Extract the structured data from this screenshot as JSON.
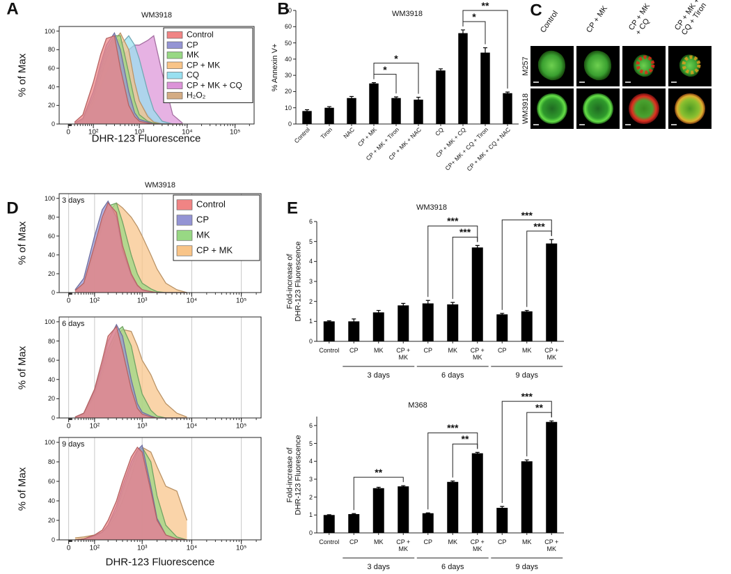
{
  "panel_labels": [
    "A",
    "B",
    "C",
    "D",
    "E"
  ],
  "panel_c": {
    "columns": [
      "Control",
      "CP + MK",
      "CP + MK\n+ CQ",
      "CP + MK +\nCQ + Tiron"
    ],
    "rows": [
      "M257",
      "WM3918"
    ]
  },
  "chart_data": [
    {
      "type": "area",
      "title": "WM3918",
      "xlabel": "DHR-123 Fluorescence",
      "ylabel": "% of Max",
      "xscale": "biexponential",
      "xlim": [
        -30,
        250000
      ],
      "xticks": [
        0,
        {
          "value": 100,
          "label": "10²"
        },
        {
          "value": 1000,
          "label": "10³"
        },
        {
          "value": 10000,
          "label": "10⁴"
        },
        {
          "value": 100000,
          "label": "10⁵"
        }
      ],
      "ylim": [
        0,
        105
      ],
      "yticks": [
        0,
        20,
        40,
        60,
        80,
        100
      ],
      "grid": false,
      "legend": "upper right",
      "x": [
        20,
        50,
        100,
        150,
        200,
        300,
        400,
        600,
        800,
        1000,
        1500,
        2000,
        3000,
        5000,
        8000
      ],
      "series": [
        {
          "name": "Control",
          "color": "#f08484",
          "values": [
            2,
            10,
            45,
            75,
            92,
            95,
            60,
            20,
            8,
            3,
            1,
            0,
            0,
            0,
            0
          ]
        },
        {
          "name": "CP",
          "color": "#9494d4",
          "values": [
            1,
            6,
            35,
            65,
            85,
            98,
            80,
            35,
            12,
            5,
            2,
            0,
            0,
            0,
            0
          ]
        },
        {
          "name": "MK",
          "color": "#98d884",
          "values": [
            1,
            5,
            30,
            60,
            80,
            95,
            95,
            55,
            25,
            10,
            3,
            1,
            0,
            0,
            0
          ]
        },
        {
          "name": "CP + MK",
          "color": "#f8c488",
          "values": [
            1,
            4,
            25,
            50,
            70,
            90,
            98,
            80,
            45,
            25,
            8,
            2,
            0,
            0,
            0
          ]
        },
        {
          "name": "CQ",
          "color": "#98e0f0",
          "values": [
            0,
            3,
            20,
            40,
            55,
            75,
            85,
            95,
            85,
            70,
            35,
            15,
            3,
            0,
            0
          ]
        },
        {
          "name": "CP + MK + CQ",
          "color": "#dc94d8",
          "values": [
            0,
            2,
            15,
            30,
            45,
            62,
            70,
            80,
            85,
            85,
            90,
            95,
            55,
            10,
            1
          ]
        },
        {
          "name": "H₂O₂",
          "color": "#d4ac84",
          "values": [
            1,
            5,
            30,
            55,
            75,
            92,
            90,
            65,
            40,
            25,
            10,
            3,
            1,
            0,
            0
          ]
        }
      ]
    },
    {
      "type": "bar",
      "title": "WM3918",
      "ylabel": "% Annexin V+",
      "xtick_rotation": -45,
      "color": "#000000",
      "categories": [
        "Control",
        "Tiron",
        "NAC",
        "CP + MK",
        "CP + MK + Tiron",
        "CP + MK + NAC",
        "CQ",
        "CP + MK + CQ",
        "CP+ MK + CQ + Tiron",
        "CP + MK + CQ + NAC"
      ],
      "values": [
        8,
        10,
        16,
        25,
        16,
        15,
        33,
        56,
        44,
        19
      ],
      "errors": [
        0.8,
        0.7,
        1,
        0.5,
        0.7,
        1.5,
        1,
        2,
        3,
        0.7
      ],
      "ylim": [
        0,
        70
      ],
      "yticks": [
        0,
        10,
        20,
        30,
        40,
        50,
        60,
        70
      ],
      "annotations": [
        {
          "text": "*",
          "from": 3,
          "to": 4
        },
        {
          "text": "*",
          "from": 3,
          "to": 5
        },
        {
          "text": "*",
          "from": 7,
          "to": 8
        },
        {
          "text": "**",
          "from": 7,
          "to": 9
        }
      ]
    },
    {
      "type": "area",
      "title": "WM3918",
      "xlabel": "DHR-123 Fluorescence",
      "ylabel": "% of Max",
      "xscale": "biexponential",
      "xlim": [
        -30,
        250000
      ],
      "xticks": [
        0,
        {
          "value": 100,
          "label": "10²"
        },
        {
          "value": 1000,
          "label": "10³"
        },
        {
          "value": 10000,
          "label": "10⁴"
        },
        {
          "value": 100000,
          "label": "10⁵"
        }
      ],
      "ylim": [
        0,
        105
      ],
      "yticks": [
        0,
        20,
        40,
        60,
        80,
        100
      ],
      "grid": true,
      "legend": "upper right",
      "x": [
        20,
        50,
        100,
        150,
        200,
        300,
        400,
        600,
        800,
        1000,
        1500,
        2000,
        3000,
        5000,
        8000
      ],
      "series": [
        {
          "name": "Control",
          "color": "#f08484"
        },
        {
          "name": "CP",
          "color": "#9494d4"
        },
        {
          "name": "MK",
          "color": "#98d884"
        },
        {
          "name": "CP + MK",
          "color": "#f8c488"
        }
      ],
      "facets": [
        {
          "label": "3 days",
          "series": [
            {
              "values": [
                2,
                10,
                50,
                80,
                95,
                85,
                50,
                20,
                8,
                3,
                1,
                0,
                0,
                0,
                0
              ]
            },
            {
              "values": [
                3,
                15,
                60,
                88,
                97,
                80,
                45,
                18,
                7,
                3,
                1,
                0,
                0,
                0,
                0
              ]
            },
            {
              "values": [
                2,
                10,
                45,
                75,
                92,
                95,
                75,
                40,
                20,
                10,
                4,
                1,
                0,
                0,
                0
              ]
            },
            {
              "values": [
                2,
                8,
                40,
                70,
                85,
                95,
                90,
                80,
                70,
                60,
                40,
                25,
                10,
                3,
                0
              ]
            }
          ]
        },
        {
          "label": "6 days",
          "series": [
            {
              "values": [
                1,
                5,
                30,
                60,
                85,
                95,
                70,
                30,
                10,
                4,
                1,
                0,
                0,
                0,
                0
              ]
            },
            {
              "values": [
                1,
                5,
                28,
                55,
                80,
                97,
                85,
                40,
                15,
                6,
                2,
                0,
                0,
                0,
                0
              ]
            },
            {
              "values": [
                1,
                4,
                25,
                50,
                72,
                90,
                95,
                75,
                45,
                25,
                8,
                2,
                0,
                0,
                0
              ]
            },
            {
              "values": [
                1,
                4,
                22,
                45,
                65,
                85,
                92,
                90,
                75,
                60,
                45,
                30,
                15,
                5,
                1
              ]
            }
          ]
        },
        {
          "label": "9 days",
          "series": [
            {
              "values": [
                0,
                1,
                5,
                10,
                20,
                40,
                60,
                85,
                95,
                90,
                50,
                20,
                5,
                1,
                0
              ]
            },
            {
              "values": [
                0,
                1,
                4,
                8,
                15,
                35,
                55,
                80,
                92,
                97,
                55,
                22,
                5,
                1,
                0
              ]
            },
            {
              "values": [
                0,
                1,
                4,
                8,
                15,
                30,
                50,
                75,
                90,
                95,
                80,
                45,
                15,
                3,
                0
              ]
            },
            {
              "values": [
                2,
                3,
                5,
                8,
                12,
                25,
                40,
                65,
                85,
                95,
                90,
                75,
                55,
                50,
                20
              ]
            }
          ]
        }
      ]
    },
    {
      "type": "bar",
      "title": "WM3918",
      "ylabel": "Fold-increase of\nDHR-123 Fluorescence",
      "color": "#000000",
      "categories": [
        "Control",
        "CP",
        "MK",
        "CP +\nMK",
        "CP",
        "MK",
        "CP +\nMK",
        "CP",
        "MK",
        "CP +\nMK"
      ],
      "values": [
        1.0,
        1.0,
        1.45,
        1.8,
        1.9,
        1.85,
        4.7,
        1.35,
        1.5,
        4.9
      ],
      "errors": [
        0.03,
        0.12,
        0.1,
        0.1,
        0.15,
        0.1,
        0.1,
        0.05,
        0.05,
        0.2
      ],
      "ylim": [
        0,
        6
      ],
      "yticks": [
        0,
        1,
        2,
        3,
        4,
        5,
        6
      ],
      "groups": [
        {
          "label": "3 days",
          "from": 1,
          "to": 3
        },
        {
          "label": "6 days",
          "from": 4,
          "to": 6
        },
        {
          "label": "9 days",
          "from": 7,
          "to": 9
        }
      ],
      "annotations": [
        {
          "text": "***",
          "from": 5,
          "to": 6
        },
        {
          "text": "***",
          "from": 4,
          "to": 6
        },
        {
          "text": "***",
          "from": 8,
          "to": 9
        },
        {
          "text": "***",
          "from": 7,
          "to": 9
        }
      ]
    },
    {
      "type": "bar",
      "title": "M368",
      "ylabel": "Fold-increase of\nDHR-123 Fluorescence",
      "color": "#000000",
      "categories": [
        "Control",
        "CP",
        "MK",
        "CP +\nMK",
        "CP",
        "MK",
        "CP +\nMK",
        "CP",
        "MK",
        "CP +\nMK"
      ],
      "values": [
        1.0,
        1.05,
        2.5,
        2.6,
        1.1,
        2.85,
        4.45,
        1.4,
        4.0,
        6.2
      ],
      "errors": [
        0.02,
        0.03,
        0.05,
        0.04,
        0.02,
        0.05,
        0.05,
        0.08,
        0.08,
        0.06
      ],
      "ylim": [
        0,
        6.5
      ],
      "yticks": [
        0,
        1,
        2,
        3,
        4,
        5,
        6
      ],
      "groups": [
        {
          "label": "3 days",
          "from": 1,
          "to": 3
        },
        {
          "label": "6 days",
          "from": 4,
          "to": 6
        },
        {
          "label": "9 days",
          "from": 7,
          "to": 9
        }
      ],
      "annotations": [
        {
          "text": "**",
          "from": 1,
          "to": 3
        },
        {
          "text": "**",
          "from": 5,
          "to": 6
        },
        {
          "text": "***",
          "from": 4,
          "to": 6
        },
        {
          "text": "**",
          "from": 8,
          "to": 9
        },
        {
          "text": "***",
          "from": 7,
          "to": 9
        }
      ]
    }
  ]
}
